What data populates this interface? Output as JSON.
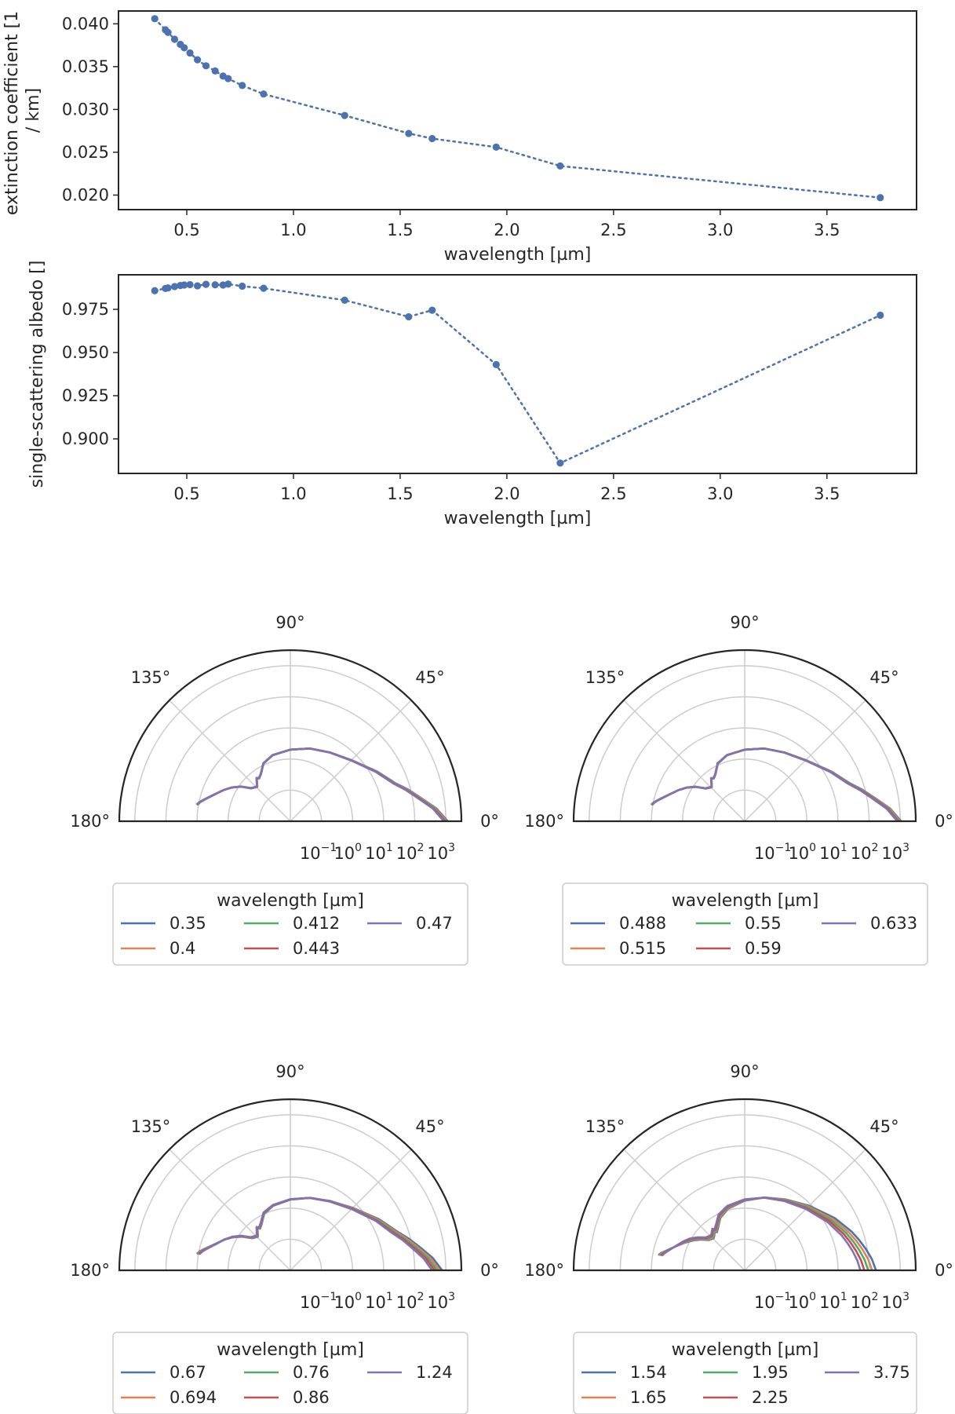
{
  "chart_data": [
    {
      "type": "line",
      "marker": "circle",
      "line_style": "dotted",
      "color": "#4c72b0",
      "xlabel": "wavelength [µm]",
      "ylabel": "extinction coefficient [1 / km]",
      "xlim": [
        0.18,
        3.92
      ],
      "ylim": [
        0.0183,
        0.0415
      ],
      "xticks": [
        "0.5",
        "1.0",
        "1.5",
        "2.0",
        "2.5",
        "3.0",
        "3.5"
      ],
      "yticks": [
        "0.020",
        "0.025",
        "0.030",
        "0.035",
        "0.040"
      ],
      "x": [
        0.35,
        0.4,
        0.412,
        0.443,
        0.47,
        0.488,
        0.515,
        0.55,
        0.59,
        0.633,
        0.67,
        0.694,
        0.76,
        0.86,
        1.24,
        1.54,
        1.65,
        1.95,
        2.25,
        3.75
      ],
      "y": [
        0.0406,
        0.0393,
        0.039,
        0.0382,
        0.0376,
        0.0372,
        0.0366,
        0.0358,
        0.0351,
        0.0345,
        0.0339,
        0.0336,
        0.0328,
        0.0318,
        0.0293,
        0.0272,
        0.0266,
        0.0256,
        0.0234,
        0.0197
      ]
    },
    {
      "type": "line",
      "marker": "circle",
      "line_style": "dotted",
      "color": "#4c72b0",
      "xlabel": "wavelength [µm]",
      "ylabel": "single-scattering albedo []",
      "xlim": [
        0.18,
        3.92
      ],
      "ylim": [
        0.88,
        0.995
      ],
      "xticks": [
        "0.5",
        "1.0",
        "1.5",
        "2.0",
        "2.5",
        "3.0",
        "3.5"
      ],
      "yticks": [
        "0.900",
        "0.925",
        "0.950",
        "0.975"
      ],
      "x": [
        0.35,
        0.4,
        0.412,
        0.443,
        0.47,
        0.488,
        0.515,
        0.55,
        0.59,
        0.633,
        0.67,
        0.694,
        0.76,
        0.86,
        1.24,
        1.54,
        1.65,
        1.95,
        2.25,
        3.75
      ],
      "y": [
        0.9858,
        0.9871,
        0.9874,
        0.9882,
        0.9888,
        0.9891,
        0.9893,
        0.9886,
        0.9895,
        0.9892,
        0.9891,
        0.9896,
        0.9884,
        0.9872,
        0.9803,
        0.9707,
        0.9745,
        0.943,
        0.886,
        0.9716
      ]
    },
    {
      "type": "polar-line",
      "theta_ticks": [
        "0°",
        "45°",
        "90°",
        "135°",
        "180°"
      ],
      "r_ticks": [
        "10",
        "10",
        "10",
        "10",
        "10"
      ],
      "r_tick_exponents": [
        "−1",
        "0",
        "1",
        "2",
        "3"
      ],
      "r_scale": "log",
      "rlim_log10": [
        -2,
        3.5
      ],
      "legend_title": "wavelength [µm]",
      "legend_placement": "below",
      "series": [
        {
          "name": "0.35",
          "color": "#4c72b0"
        },
        {
          "name": "0.4",
          "color": "#dd8452"
        },
        {
          "name": "0.412",
          "color": "#55a868"
        },
        {
          "name": "0.443",
          "color": "#c44e52"
        },
        {
          "name": "0.47",
          "color": "#8172b3"
        }
      ],
      "curve_deg": [
        0,
        5,
        10,
        15,
        20,
        30,
        45,
        60,
        75,
        90,
        105,
        115,
        122,
        126,
        128,
        132,
        134,
        140,
        145,
        150,
        155,
        160,
        163,
        166,
        168,
        170
      ],
      "curve_log10r": [
        3.0,
        2.66,
        2.23,
        1.89,
        1.56,
        1.19,
        0.77,
        0.55,
        0.42,
        0.3,
        0.2,
        0.05,
        -0.21,
        -0.29,
        -0.24,
        -0.4,
        -0.46,
        -0.35,
        -0.06,
        0.17,
        0.37,
        0.56,
        0.7,
        0.86,
        0.97,
        1.05
      ],
      "spread": 0.012
    },
    {
      "type": "polar-line",
      "theta_ticks": [
        "0°",
        "45°",
        "90°",
        "135°",
        "180°"
      ],
      "r_ticks": [
        "10",
        "10",
        "10",
        "10",
        "10"
      ],
      "r_tick_exponents": [
        "−1",
        "0",
        "1",
        "2",
        "3"
      ],
      "r_scale": "log",
      "rlim_log10": [
        -2,
        3.5
      ],
      "legend_title": "wavelength [µm]",
      "legend_placement": "below",
      "series": [
        {
          "name": "0.488",
          "color": "#4c72b0"
        },
        {
          "name": "0.515",
          "color": "#dd8452"
        },
        {
          "name": "0.55",
          "color": "#55a868"
        },
        {
          "name": "0.59",
          "color": "#c44e52"
        },
        {
          "name": "0.633",
          "color": "#8172b3"
        }
      ],
      "curve_deg": [
        0,
        5,
        10,
        15,
        20,
        30,
        45,
        60,
        75,
        90,
        105,
        115,
        122,
        126,
        128,
        132,
        134,
        140,
        145,
        150,
        155,
        160,
        163,
        166,
        168,
        170
      ],
      "curve_log10r": [
        2.97,
        2.64,
        2.22,
        1.88,
        1.56,
        1.19,
        0.77,
        0.55,
        0.42,
        0.3,
        0.2,
        0.05,
        -0.22,
        -0.3,
        -0.25,
        -0.41,
        -0.47,
        -0.36,
        -0.07,
        0.16,
        0.36,
        0.55,
        0.69,
        0.85,
        0.96,
        1.04
      ],
      "spread": 0.012
    },
    {
      "type": "polar-line",
      "theta_ticks": [
        "0°",
        "45°",
        "90°",
        "135°",
        "180°"
      ],
      "r_ticks": [
        "10",
        "10",
        "10",
        "10",
        "10"
      ],
      "r_tick_exponents": [
        "−1",
        "0",
        "1",
        "2",
        "3"
      ],
      "r_scale": "log",
      "rlim_log10": [
        -2,
        3.5
      ],
      "legend_title": "wavelength [µm]",
      "legend_placement": "below",
      "series": [
        {
          "name": "0.67",
          "color": "#4c72b0"
        },
        {
          "name": "0.694",
          "color": "#dd8452"
        },
        {
          "name": "0.76",
          "color": "#55a868"
        },
        {
          "name": "0.86",
          "color": "#c44e52"
        },
        {
          "name": "1.24",
          "color": "#8172b3"
        }
      ],
      "curve_deg": [
        0,
        5,
        10,
        15,
        20,
        30,
        45,
        60,
        75,
        90,
        105,
        115,
        122,
        126,
        128,
        132,
        134,
        140,
        145,
        150,
        155,
        160,
        163,
        166,
        168,
        170
      ],
      "curve_log10r": [
        2.72,
        2.45,
        2.12,
        1.84,
        1.57,
        1.23,
        0.81,
        0.56,
        0.41,
        0.28,
        0.16,
        0.02,
        -0.23,
        -0.32,
        -0.26,
        -0.41,
        -0.47,
        -0.37,
        -0.09,
        0.14,
        0.34,
        0.52,
        0.66,
        0.82,
        0.93,
        1.01
      ],
      "spread": 0.035
    },
    {
      "type": "polar-line",
      "theta_ticks": [
        "0°",
        "45°",
        "90°",
        "135°",
        "180°"
      ],
      "r_ticks": [
        "10",
        "10",
        "10",
        "10",
        "10"
      ],
      "r_tick_exponents": [
        "−1",
        "0",
        "1",
        "2",
        "3"
      ],
      "r_scale": "log",
      "rlim_log10": [
        -2,
        3.5
      ],
      "legend_title": "wavelength [µm]",
      "legend_placement": "below",
      "series": [
        {
          "name": "1.54",
          "color": "#4c72b0"
        },
        {
          "name": "1.65",
          "color": "#dd8452"
        },
        {
          "name": "1.95",
          "color": "#55a868"
        },
        {
          "name": "2.25",
          "color": "#c44e52"
        },
        {
          "name": "3.75",
          "color": "#8172b3"
        }
      ],
      "curve_deg": [
        0,
        5,
        10,
        15,
        20,
        30,
        45,
        60,
        75,
        90,
        105,
        115,
        122,
        126,
        128,
        132,
        134,
        140,
        145,
        150,
        155,
        160,
        163,
        166,
        168,
        170
      ],
      "curve_log10r": [
        1.97,
        1.87,
        1.74,
        1.61,
        1.48,
        1.22,
        0.86,
        0.6,
        0.42,
        0.26,
        0.1,
        -0.08,
        -0.32,
        -0.42,
        -0.37,
        -0.47,
        -0.5,
        -0.42,
        -0.21,
        -0.02,
        0.15,
        0.32,
        0.44,
        0.58,
        0.68,
        0.76
      ],
      "spread": 0.08
    }
  ]
}
